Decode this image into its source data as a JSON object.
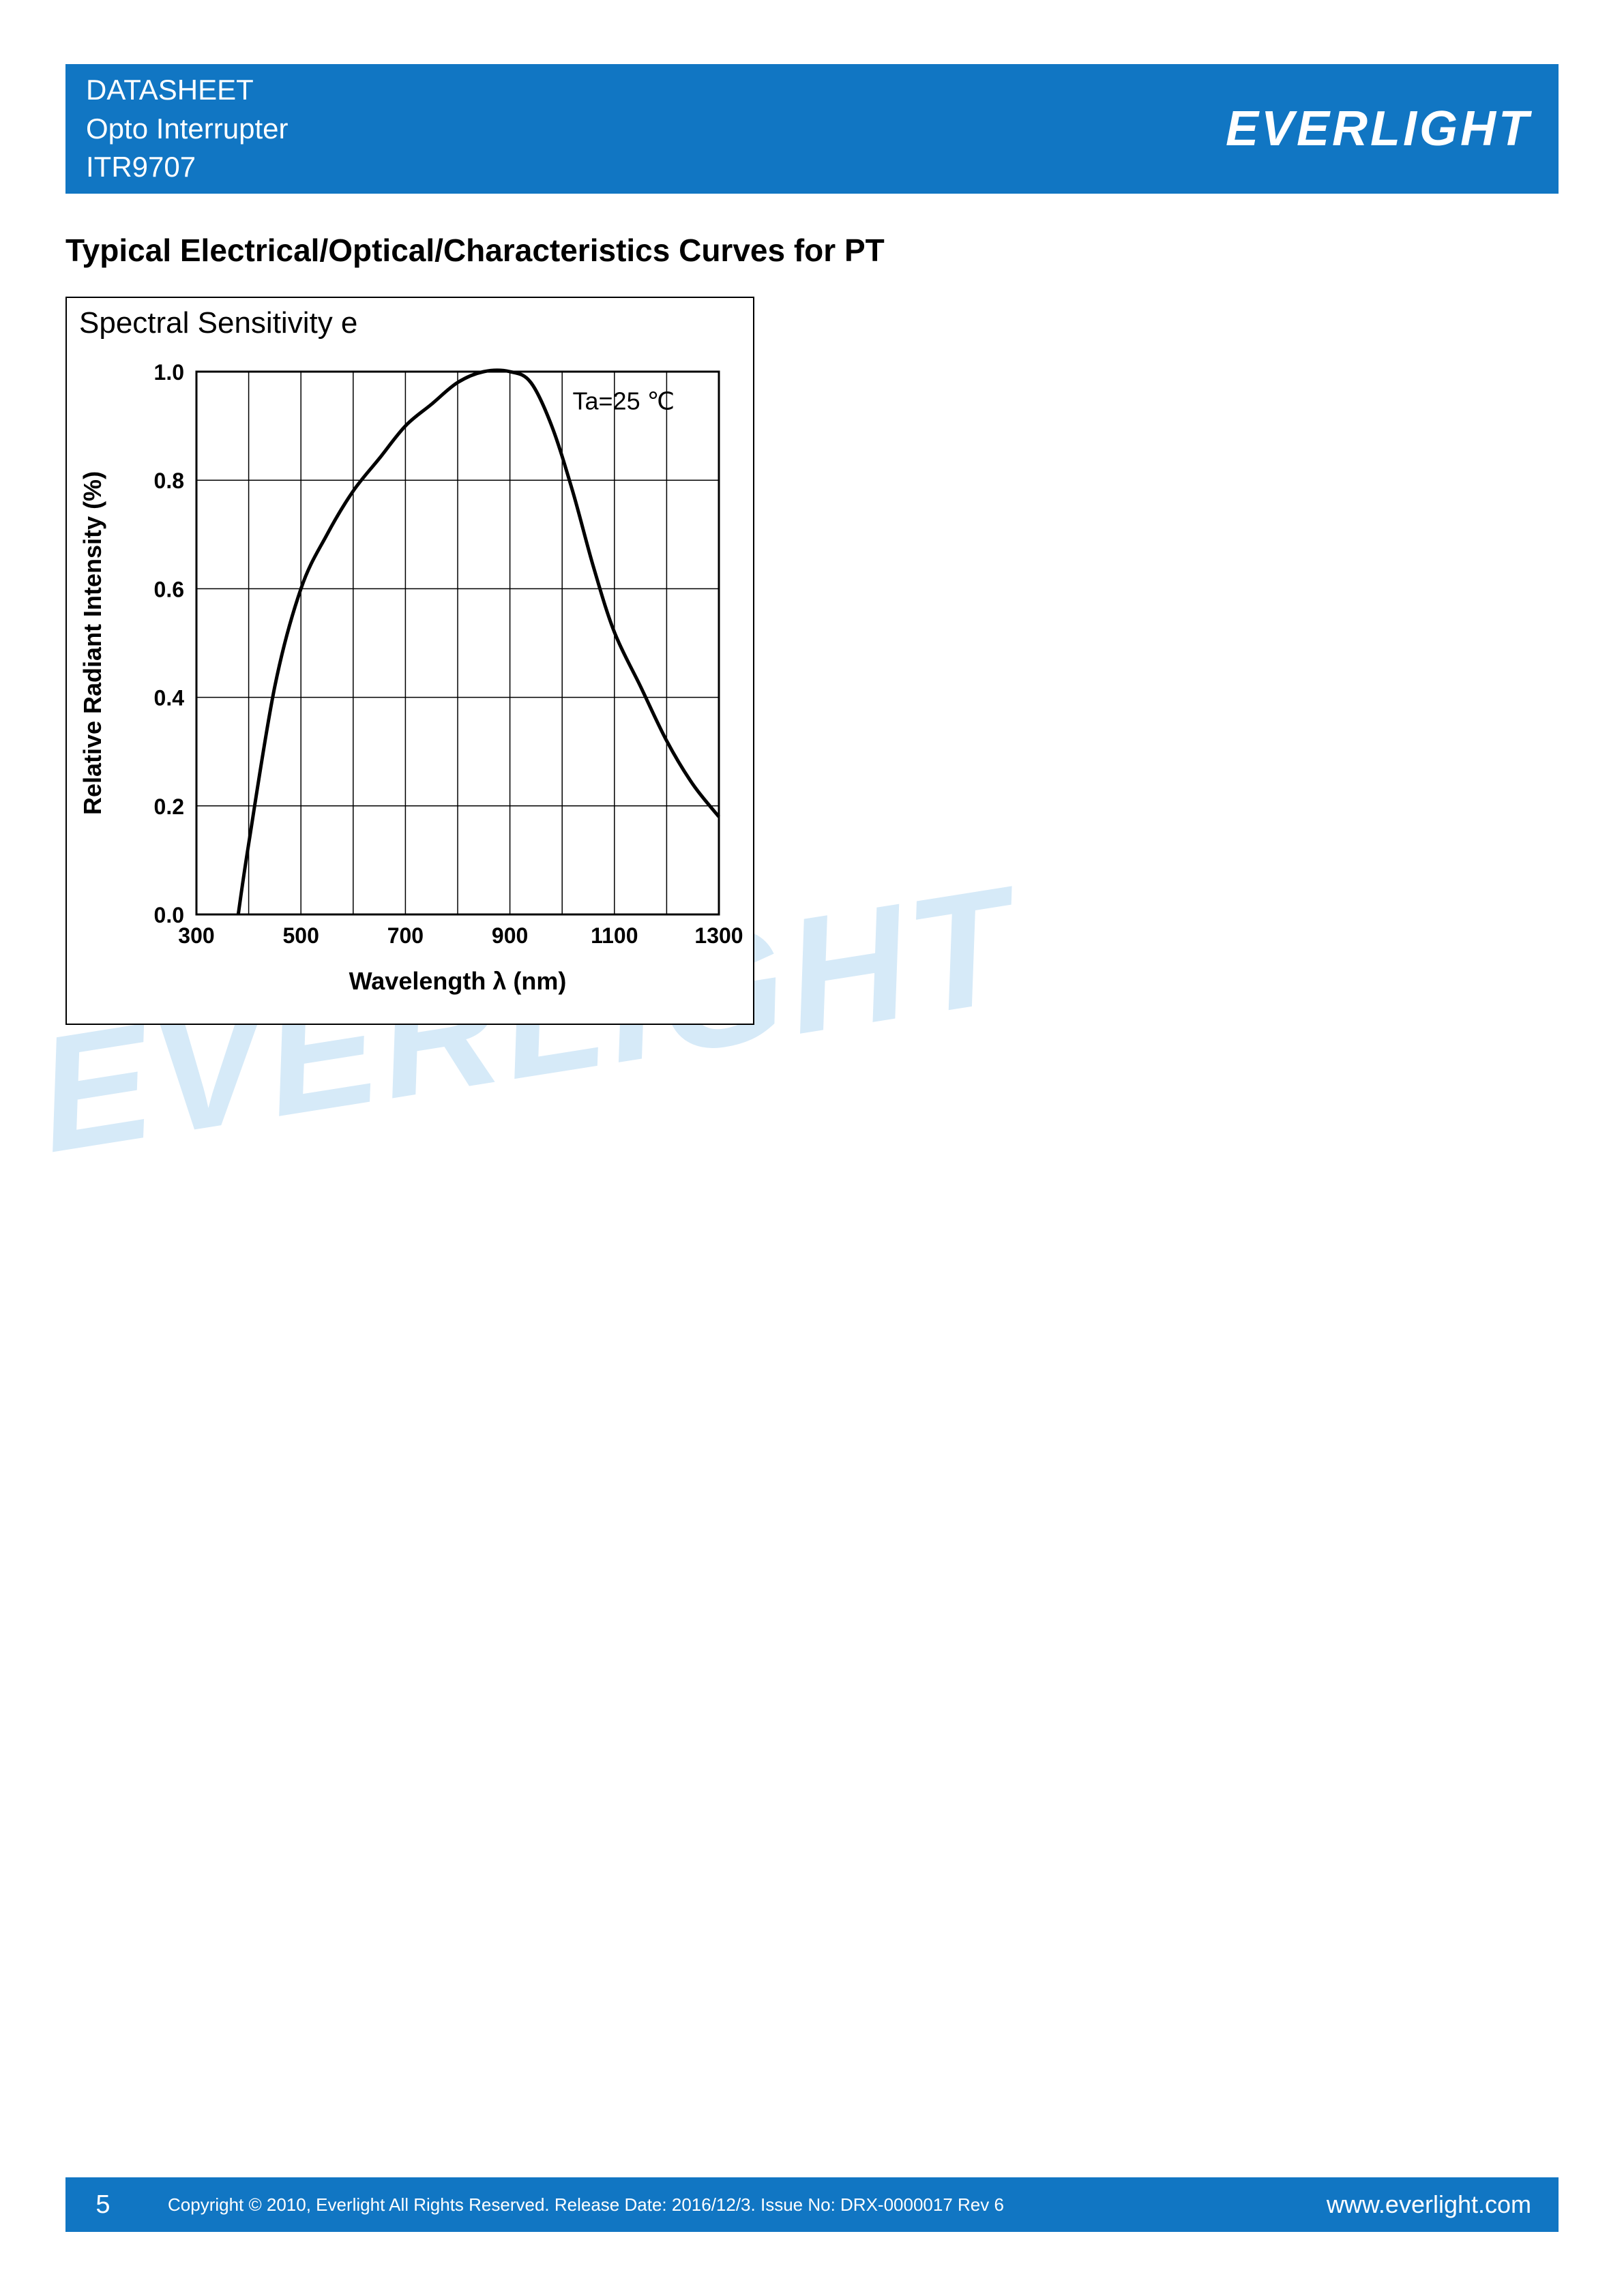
{
  "header": {
    "line1": "DATASHEET",
    "line2": "Opto Interrupter",
    "line3": "ITR9707",
    "brand": "EVERLIGHT"
  },
  "section_title": "Typical Electrical/Optical/Characteristics Curves for PT",
  "chart": {
    "title": "Spectral Sensitivity e",
    "type": "line",
    "xlabel": "Wavelength λ (nm)",
    "ylabel": "Relative Radiant Intensity (%)",
    "annotation": "Ta=25 ℃",
    "xlim": [
      300,
      1300
    ],
    "ylim": [
      0.0,
      1.0
    ],
    "xticks": [
      300,
      500,
      700,
      900,
      1100,
      1300
    ],
    "yticks": [
      0.0,
      0.2,
      0.4,
      0.6,
      0.8,
      1.0
    ],
    "x_gridlines": [
      300,
      400,
      500,
      600,
      700,
      800,
      900,
      1000,
      1100,
      1200,
      1300
    ],
    "y_gridlines": [
      0.0,
      0.2,
      0.4,
      0.6,
      0.8,
      1.0
    ],
    "line_color": "#000000",
    "line_width": 5,
    "grid_color": "#000000",
    "grid_width": 1.5,
    "background_color": "#ffffff",
    "label_fontsize": 36,
    "tick_fontsize": 32,
    "annotation_fontsize": 36,
    "data": [
      {
        "x": 380,
        "y": 0.0
      },
      {
        "x": 400,
        "y": 0.13
      },
      {
        "x": 450,
        "y": 0.42
      },
      {
        "x": 500,
        "y": 0.6
      },
      {
        "x": 550,
        "y": 0.7
      },
      {
        "x": 600,
        "y": 0.78
      },
      {
        "x": 650,
        "y": 0.84
      },
      {
        "x": 700,
        "y": 0.9
      },
      {
        "x": 750,
        "y": 0.94
      },
      {
        "x": 800,
        "y": 0.98
      },
      {
        "x": 850,
        "y": 1.0
      },
      {
        "x": 900,
        "y": 1.0
      },
      {
        "x": 940,
        "y": 0.98
      },
      {
        "x": 980,
        "y": 0.9
      },
      {
        "x": 1020,
        "y": 0.78
      },
      {
        "x": 1060,
        "y": 0.64
      },
      {
        "x": 1100,
        "y": 0.52
      },
      {
        "x": 1150,
        "y": 0.42
      },
      {
        "x": 1200,
        "y": 0.32
      },
      {
        "x": 1250,
        "y": 0.24
      },
      {
        "x": 1300,
        "y": 0.18
      }
    ]
  },
  "watermark": "EVERLIGHT",
  "footer": {
    "page": "5",
    "copyright": "Copyright © 2010, Everlight All Rights Reserved. Release Date: 2016/12/3. Issue No: DRX-0000017   Rev 6",
    "url": "www.everlight.com"
  },
  "colors": {
    "brand_blue": "#1176c3",
    "watermark_blue": "#d6eaf8",
    "text_black": "#000000",
    "white": "#ffffff"
  }
}
